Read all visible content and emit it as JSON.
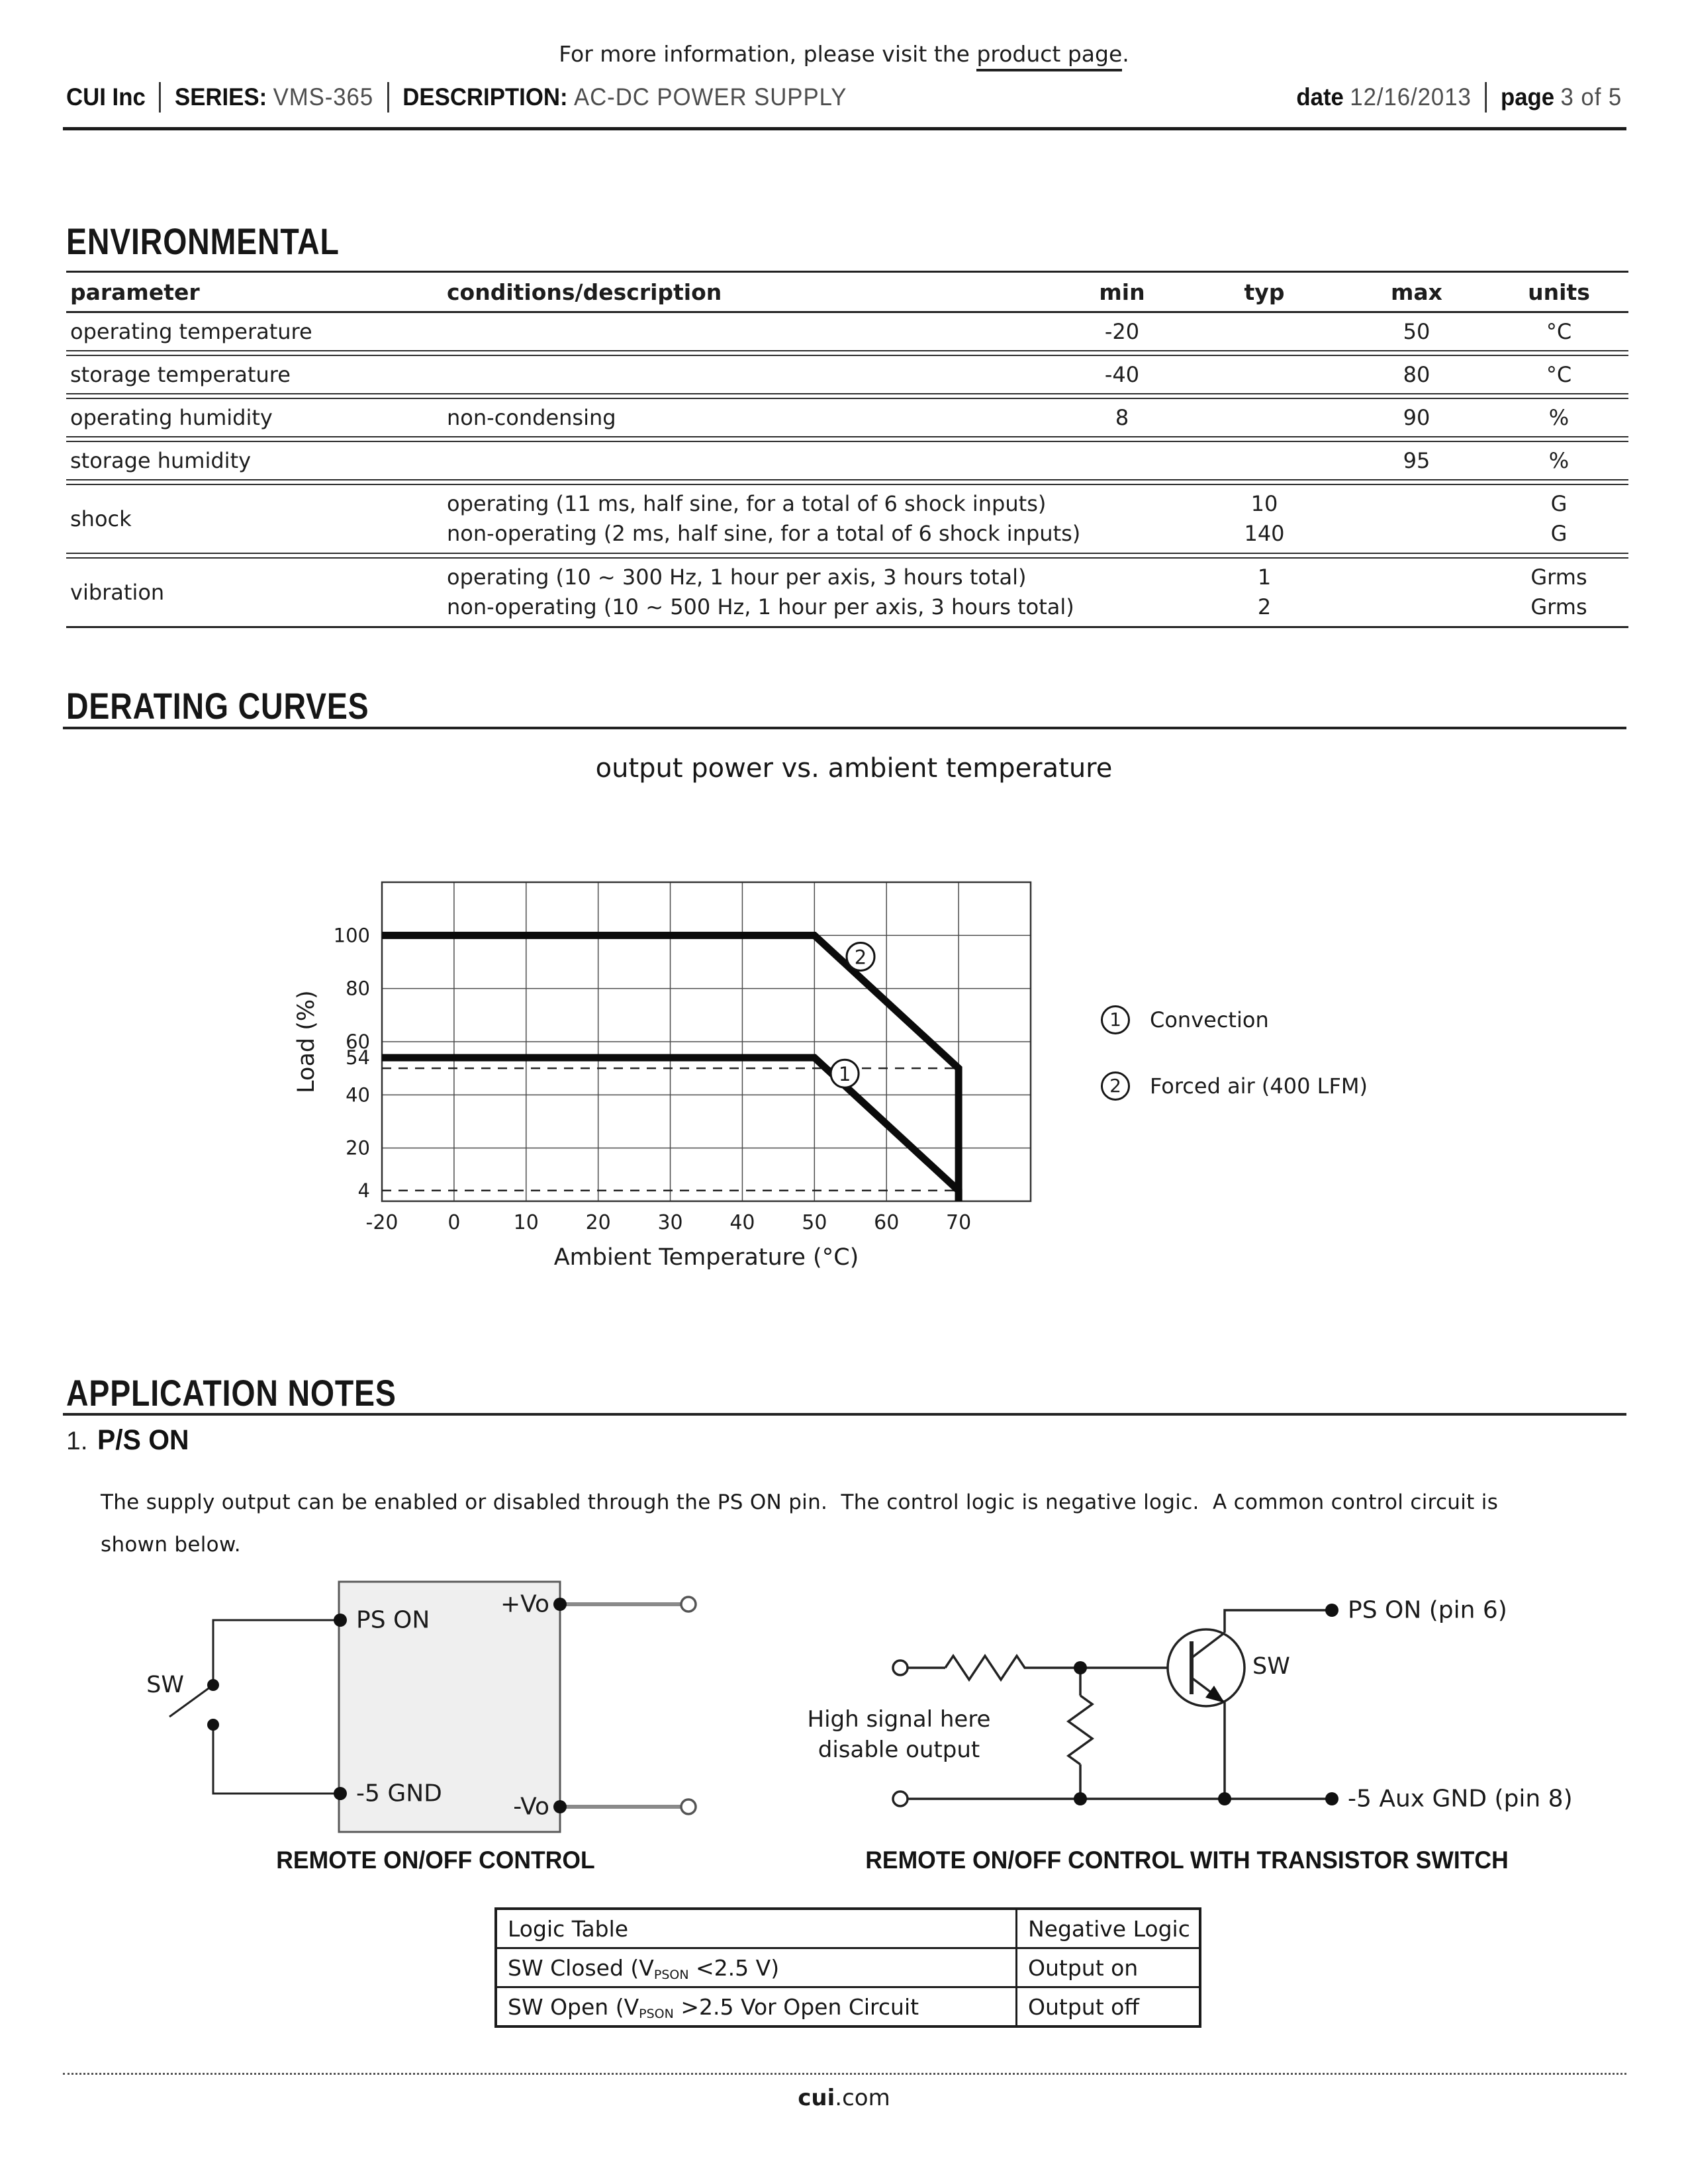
{
  "top_note": {
    "prefix": "For more information, please visit the ",
    "link": "product page",
    "suffix": "."
  },
  "header": {
    "company": "CUI Inc",
    "series_label": "SERIES:",
    "series_value": "VMS-365",
    "description_label": "DESCRIPTION:",
    "description_value": "AC-DC POWER SUPPLY",
    "date_label": "date",
    "date_value": "12/16/2013",
    "page_label": "page",
    "page_value": "3 of 5"
  },
  "environmental": {
    "title": "ENVIRONMENTAL",
    "columns": {
      "parameter": "parameter",
      "conditions": "conditions/description",
      "min": "min",
      "typ": "typ",
      "max": "max",
      "units": "units"
    },
    "rows": [
      {
        "parameter": "operating temperature",
        "conditions": "",
        "min": "-20",
        "typ": "",
        "max": "50",
        "units": "°C"
      },
      {
        "parameter": "storage temperature",
        "conditions": "",
        "min": "-40",
        "typ": "",
        "max": "80",
        "units": "°C"
      },
      {
        "parameter": "operating humidity",
        "conditions": "non-condensing",
        "min": "8",
        "typ": "",
        "max": "90",
        "units": "%"
      },
      {
        "parameter": "storage humidity",
        "conditions": "",
        "min": "",
        "typ": "",
        "max": "95",
        "units": "%"
      },
      {
        "parameter": "shock",
        "conditions1": "operating (11 ms, half sine, for a total of 6 shock inputs)",
        "conditions2": "non-operating (2 ms, half sine, for a total of 6 shock inputs)",
        "typ1": "10",
        "typ2": "140",
        "units1": "G",
        "units2": "G"
      },
      {
        "parameter": "vibration",
        "conditions1": "operating (10 ~ 300 Hz, 1 hour per axis, 3 hours total)",
        "conditions2": "non-operating (10 ~ 500 Hz, 1 hour per axis, 3 hours total)",
        "typ1": "1",
        "typ2": "2",
        "units1": "Grms",
        "units2": "Grms"
      }
    ]
  },
  "derating": {
    "title": "DERATING CURVES"
  },
  "chart_data": {
    "type": "line",
    "title": "output power vs. ambient temperature",
    "xlabel": "Ambient Temperature (°C)",
    "ylabel": "Load (%)",
    "x_ticks": [
      -20,
      0,
      10,
      20,
      30,
      40,
      50,
      60,
      70
    ],
    "x_cells": [
      -20,
      0,
      10,
      20,
      30,
      40,
      50,
      60,
      70,
      80
    ],
    "y_ticks": [
      100,
      80,
      60,
      54,
      40,
      20,
      4
    ],
    "y_gridlines": [
      20,
      40,
      60,
      80,
      100
    ],
    "ylim": [
      0,
      120
    ],
    "grid": true,
    "legend_position": "right",
    "series": [
      {
        "name": "Convection",
        "marker": "1",
        "points": [
          [
            -20,
            54
          ],
          [
            50,
            54
          ],
          [
            70,
            4
          ],
          [
            70,
            0
          ]
        ]
      },
      {
        "name": "Forced air (400 LFM)",
        "marker": "2",
        "points": [
          [
            -20,
            100
          ],
          [
            50,
            100
          ],
          [
            70,
            50
          ],
          [
            70,
            0
          ]
        ]
      }
    ],
    "dashed_guides": [
      {
        "y": 50,
        "x_from": -20,
        "x_to": 70
      },
      {
        "y": 4,
        "x_from": -20,
        "x_to": 70
      }
    ],
    "annotations": [
      {
        "label": "1",
        "x": 54.2,
        "y": 48
      },
      {
        "label": "2",
        "x": 56.4,
        "y": 92
      }
    ],
    "legend": [
      {
        "marker": "1",
        "label": "Convection"
      },
      {
        "marker": "2",
        "label": "Forced air (400 LFM)"
      }
    ]
  },
  "application_notes": {
    "title": "APPLICATION NOTES",
    "item_number": "1.",
    "item_title": "P/S ON",
    "paragraph_line1": "The supply output can be enabled or disabled through the PS ON pin.  The control logic is negative logic.  A common control circuit is",
    "paragraph_line2": "shown below.",
    "circuit1": {
      "caption": "REMOTE ON/OFF CONTROL",
      "sw_label": "SW",
      "ps_on_label": "PS ON",
      "pos_vo_label": "+Vo",
      "gnd_label": "-5 GND",
      "neg_vo_label": "-Vo"
    },
    "circuit2": {
      "caption": "REMOTE ON/OFF CONTROL WITH TRANSISTOR SWITCH",
      "ps_on_label": "PS ON (pin 6)",
      "sw_label": "SW",
      "note_line1": "High signal here",
      "note_line2": "disable output",
      "gnd_label": "-5 Aux GND (pin 8)"
    },
    "logic_table": {
      "rows": [
        {
          "left_pre": "Logic Table",
          "left_sub": "",
          "left_post": "",
          "right": "Negative Logic"
        },
        {
          "left_pre": "SW Closed (V",
          "left_sub": "PSON",
          "left_post": " <2.5 V)",
          "right": "Output on"
        },
        {
          "left_pre": "SW Open (V",
          "left_sub": "PSON",
          "left_post": " >2.5 Vor Open Circuit",
          "right": "Output off"
        }
      ]
    }
  },
  "footer": {
    "site_bold": "cui",
    "site_rest": ".com"
  }
}
